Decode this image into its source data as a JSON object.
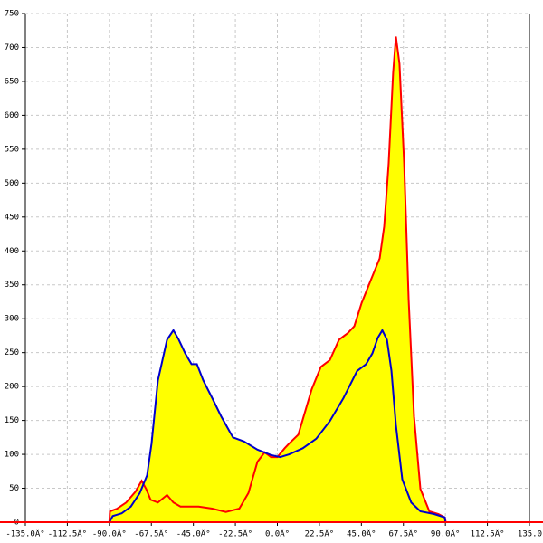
{
  "chart_data": {
    "type": "area",
    "xlim": [
      -135,
      135
    ],
    "ylim": [
      0,
      750
    ],
    "xticks": [
      {
        "value": -135,
        "label": "-135.0Â°"
      },
      {
        "value": -112.5,
        "label": "-112.5Â°"
      },
      {
        "value": -90,
        "label": "-90.0Â°"
      },
      {
        "value": -67.5,
        "label": "-67.5Â°"
      },
      {
        "value": -45,
        "label": "-45.0Â°"
      },
      {
        "value": -22.5,
        "label": "-22.5Â°"
      },
      {
        "value": 0,
        "label": "0.0Â°"
      },
      {
        "value": 22.5,
        "label": "22.5Â°"
      },
      {
        "value": 45,
        "label": "45.0Â°"
      },
      {
        "value": 67.5,
        "label": "67.5Â°"
      },
      {
        "value": 90,
        "label": "90.0Â°"
      },
      {
        "value": 112.5,
        "label": "112.5Â°"
      },
      {
        "value": 135,
        "label": "135.0"
      }
    ],
    "yticks": [
      0,
      50,
      100,
      150,
      200,
      250,
      300,
      350,
      400,
      450,
      500,
      550,
      600,
      650,
      700,
      750
    ],
    "grid": true,
    "area_color": "#ffff00",
    "series": [
      {
        "color": "#ff0000",
        "x": [
          -90,
          -89.7,
          -85.8,
          -81,
          -76,
          -72.7,
          -70.3,
          -67.9,
          -64,
          -59.1,
          -55.7,
          -51.9,
          -42.2,
          -34.9,
          -27.6,
          -20.4,
          -15.5,
          -10.7,
          -6.8,
          -3.4,
          0,
          3.9,
          6.3,
          11.2,
          18.4,
          23.3,
          28.1,
          33,
          37.8,
          41.2,
          45.1,
          49.9,
          54.8,
          57.2,
          59.6,
          62,
          63.5,
          65.4,
          67.9,
          70.3,
          73.2,
          76.6,
          81.4,
          86.3,
          89.7,
          90.2
        ],
        "values": [
          0,
          16,
          20,
          29,
          45,
          61,
          49,
          33,
          29,
          40,
          29,
          23,
          23,
          20,
          15,
          20,
          43,
          89,
          103,
          96,
          96,
          109,
          116,
          129,
          196,
          229,
          239,
          269,
          279,
          289,
          323,
          356,
          389,
          436,
          529,
          663,
          716,
          676,
          529,
          329,
          156,
          49,
          16,
          12,
          7,
          0
        ]
      },
      {
        "color": "#0000cc",
        "x": [
          -90,
          -88.2,
          -83.4,
          -78.5,
          -73.7,
          -69.8,
          -67.4,
          -64,
          -59.1,
          -55.7,
          -52.8,
          -49.4,
          -46,
          -43.1,
          -39.7,
          -34.9,
          -30.1,
          -23.8,
          -17.9,
          -10.7,
          -3.4,
          1.5,
          6.3,
          13.6,
          20.8,
          28.1,
          35.4,
          42.7,
          47.5,
          50.9,
          53.8,
          56.2,
          58.7,
          61.1,
          63.5,
          66.9,
          71.7,
          76.6,
          83.9,
          89.7,
          90
        ],
        "values": [
          0,
          9,
          13,
          23,
          43,
          69,
          116,
          209,
          269,
          283,
          269,
          249,
          233,
          233,
          209,
          183,
          156,
          125,
          119,
          107,
          99,
          96,
          100,
          109,
          123,
          149,
          183,
          223,
          233,
          249,
          272,
          283,
          269,
          223,
          143,
          63,
          29,
          16,
          12,
          7,
          0
        ]
      }
    ]
  }
}
